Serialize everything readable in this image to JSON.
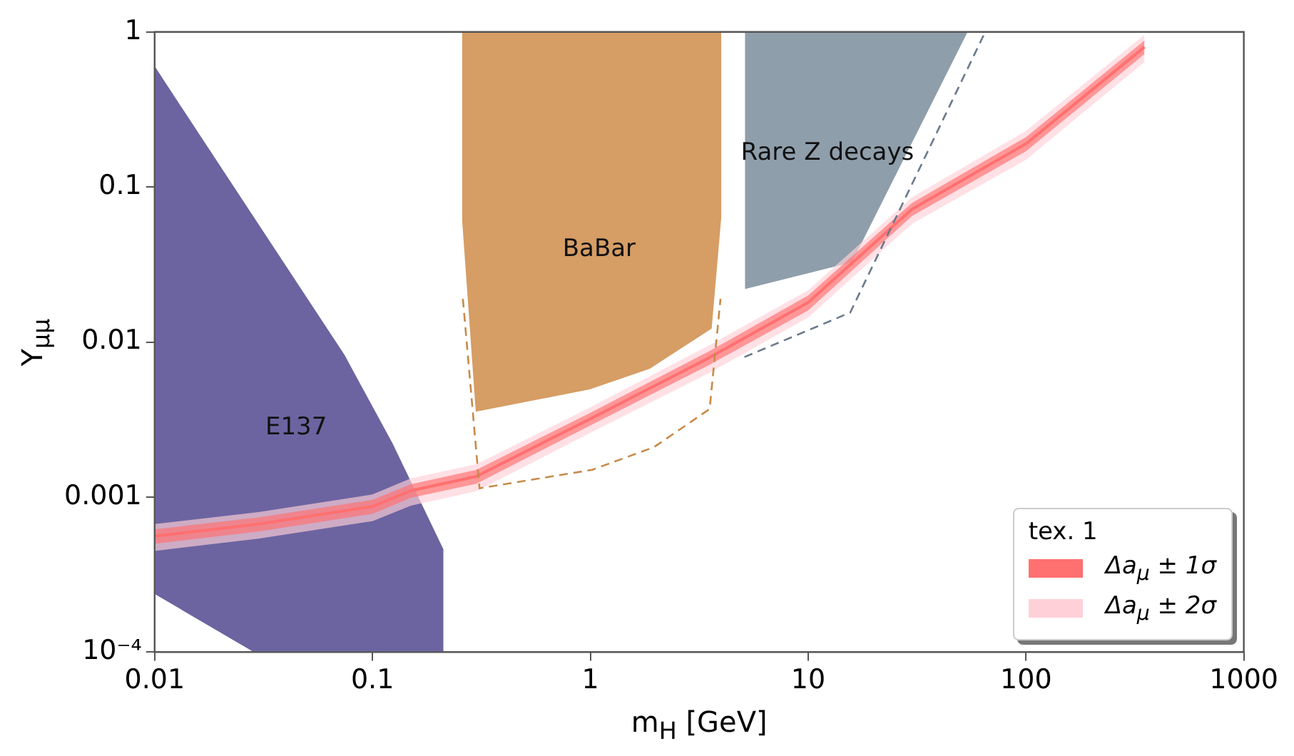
{
  "chart_data": {
    "type": "area",
    "xlabel": "m$_{H}$ [GeV]",
    "ylabel": "Y$_{μμ}$",
    "log": "xy",
    "xlim": [
      0.01,
      1000
    ],
    "ylim": [
      0.0001,
      1
    ],
    "xticks": [
      0.01,
      0.1,
      1,
      10,
      100,
      1000
    ],
    "yticks": [
      {
        "value": 0.0001,
        "label": "10⁻⁴"
      },
      0.001,
      0.01,
      0.1,
      1
    ],
    "grid": false,
    "legend": "bottom right",
    "legend_title": "tex. 1",
    "series": [
      {
        "name": "Δa$_{μ}$ ± 1σ",
        "type": "line",
        "color": "#ff7070",
        "x": [
          0.01,
          0.03,
          0.1,
          0.15,
          0.3,
          1,
          3.5,
          10,
          30,
          100,
          350
        ],
        "values": [
          0.00056,
          0.00067,
          0.00087,
          0.0011,
          0.00136,
          0.0032,
          0.0079,
          0.018,
          0.072,
          0.19,
          0.8
        ],
        "lower": [
          0.0005,
          0.0006,
          0.00078,
          0.00099,
          0.00122,
          0.0029,
          0.0071,
          0.016,
          0.065,
          0.17,
          0.72
        ],
        "upper": [
          0.00062,
          0.00074,
          0.00096,
          0.00121,
          0.0015,
          0.0035,
          0.0087,
          0.02,
          0.079,
          0.21,
          0.88
        ]
      },
      {
        "name": "Δa$_{μ}$ ± 2σ",
        "type": "line",
        "color": "#ffd0d8",
        "x": [
          0.01,
          0.03,
          0.1,
          0.15,
          0.3,
          1,
          3.5,
          10,
          30,
          100,
          350
        ],
        "values": [
          null,
          null,
          null,
          null,
          null,
          null,
          null,
          null,
          null,
          null,
          null
        ],
        "lower": [
          0.00045,
          0.00054,
          0.0007,
          0.00088,
          0.00109,
          0.0026,
          0.0063,
          0.0144,
          0.058,
          0.15,
          0.64
        ],
        "upper": [
          0.00067,
          0.0008,
          0.00104,
          0.00132,
          0.00163,
          0.0038,
          0.0095,
          0.0216,
          0.086,
          0.23,
          0.96
        ]
      },
      {
        "type": "line",
        "line_style": "dashed",
        "color": "#c88a4a",
        "x": [
          0.26,
          0.31,
          1.02,
          1.96,
          3.53,
          3.96
        ],
        "values": [
          0.019,
          0.00114,
          0.0015,
          0.0021,
          0.0037,
          0.019
        ]
      },
      {
        "type": "line",
        "line_style": "dashed",
        "color": "#6b7a8c",
        "x": [
          5.1,
          15.6,
          65
        ],
        "values": [
          0.008,
          0.0155,
          1
        ]
      },
      {
        "name": "E137",
        "color": "#6c64a0",
        "x": [
          0.01,
          0.0135,
          0.074,
          0.123,
          0.21,
          0.21,
          0.029,
          0.01
        ],
        "values": [
          0.59,
          0.31,
          0.0082,
          0.0022,
          0.00046,
          0.0001,
          0.0001,
          0.00024
        ]
      },
      {
        "name": "BaBar",
        "color": "#d69d65",
        "x": [
          0.26,
          0.26,
          0.3,
          0.99,
          1.87,
          3.58,
          3.96,
          3.96
        ],
        "values": [
          1,
          0.061,
          0.0036,
          0.005,
          0.0068,
          0.0123,
          0.063,
          1
        ]
      },
      {
        "name": "Rare Z decays",
        "color": "#8f9eab",
        "x": [
          5.17,
          5.17,
          15.8,
          53.5
        ],
        "values": [
          1,
          0.0223,
          0.033,
          1
        ]
      }
    ]
  }
}
